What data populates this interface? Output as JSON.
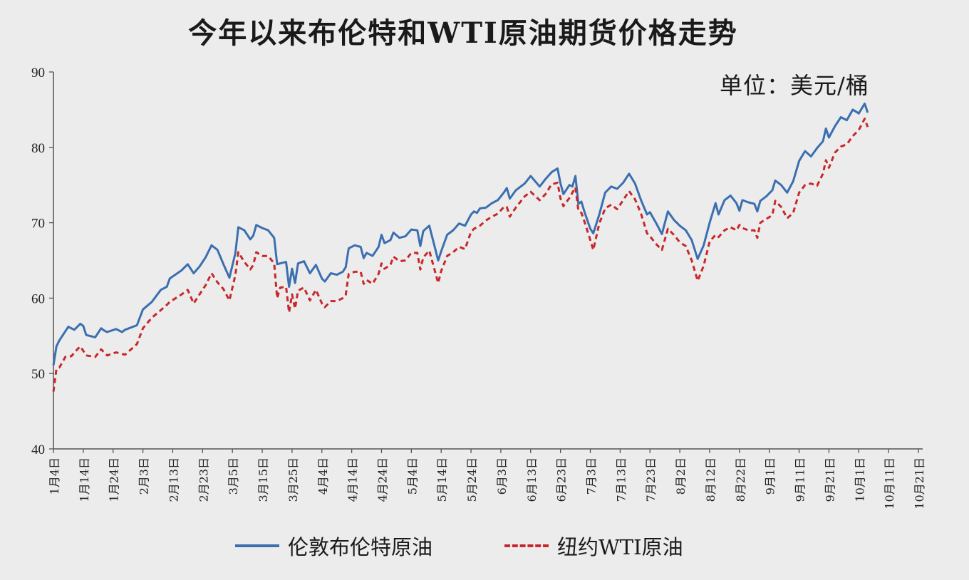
{
  "chart_data": {
    "type": "line",
    "title": "今年以来布伦特和WTI原油期货价格走势",
    "unit_label": "单位：美元/桶",
    "ylim": [
      40,
      90
    ],
    "y_ticks": [
      "40",
      "50",
      "60",
      "70",
      "80",
      "90"
    ],
    "x_tick_labels": [
      "1月4日",
      "1月14日",
      "1月24日",
      "2月3日",
      "2月13日",
      "2月23日",
      "3月5日",
      "3月15日",
      "3月25日",
      "4月4日",
      "4月14日",
      "4月24日",
      "5月4日",
      "5月14日",
      "5月24日",
      "6月3日",
      "6月13日",
      "6月23日",
      "7月3日",
      "7月13日",
      "7月23日",
      "8月2日",
      "8月12日",
      "8月22日",
      "9月1日",
      "9月11日",
      "9月21日",
      "10月1日",
      "10月11日",
      "10月21日"
    ],
    "series": [
      {
        "name": "伦敦布伦特原油",
        "color": "#3b6fb0",
        "style": "solid",
        "values": [
          [
            0,
            51.1
          ],
          [
            1,
            53.6
          ],
          [
            2,
            54.4
          ],
          [
            5,
            56.2
          ],
          [
            7,
            55.8
          ],
          [
            9,
            56.6
          ],
          [
            10,
            56.3
          ],
          [
            11,
            55.1
          ],
          [
            14,
            54.8
          ],
          [
            16,
            56.0
          ],
          [
            17,
            55.7
          ],
          [
            18,
            55.5
          ],
          [
            21,
            55.9
          ],
          [
            23,
            55.5
          ],
          [
            24,
            55.8
          ],
          [
            28,
            56.4
          ],
          [
            30,
            58.5
          ],
          [
            33,
            59.5
          ],
          [
            36,
            61.1
          ],
          [
            38,
            61.5
          ],
          [
            39,
            62.6
          ],
          [
            43,
            63.7
          ],
          [
            45,
            64.5
          ],
          [
            47,
            63.3
          ],
          [
            49,
            64.2
          ],
          [
            51,
            65.4
          ],
          [
            53,
            67.0
          ],
          [
            55,
            66.4
          ],
          [
            57,
            64.5
          ],
          [
            59,
            62.7
          ],
          [
            61,
            66.0
          ],
          [
            62,
            69.4
          ],
          [
            64,
            69.0
          ],
          [
            66,
            67.8
          ],
          [
            67,
            68.3
          ],
          [
            68,
            69.7
          ],
          [
            70,
            69.3
          ],
          [
            72,
            69.0
          ],
          [
            74,
            68.0
          ],
          [
            75,
            64.5
          ],
          [
            76,
            64.6
          ],
          [
            78,
            64.8
          ],
          [
            79,
            61.5
          ],
          [
            80,
            63.9
          ],
          [
            81,
            62.0
          ],
          [
            82,
            64.6
          ],
          [
            84,
            64.9
          ],
          [
            86,
            63.3
          ],
          [
            88,
            64.4
          ],
          [
            90,
            62.6
          ],
          [
            91,
            62.2
          ],
          [
            93,
            63.3
          ],
          [
            95,
            63.1
          ],
          [
            97,
            63.5
          ],
          [
            98,
            64.1
          ],
          [
            99,
            66.6
          ],
          [
            101,
            67.0
          ],
          [
            103,
            66.8
          ],
          [
            104,
            65.3
          ],
          [
            105,
            66.0
          ],
          [
            107,
            65.6
          ],
          [
            109,
            66.8
          ],
          [
            110,
            68.4
          ],
          [
            111,
            67.3
          ],
          [
            113,
            67.7
          ],
          [
            114,
            68.7
          ],
          [
            116,
            68.0
          ],
          [
            118,
            68.2
          ],
          [
            120,
            69.1
          ],
          [
            122,
            69.0
          ],
          [
            123,
            66.9
          ],
          [
            124,
            68.9
          ],
          [
            126,
            69.6
          ],
          [
            129,
            65.0
          ],
          [
            130,
            66.2
          ],
          [
            132,
            68.4
          ],
          [
            134,
            69.0
          ],
          [
            136,
            69.9
          ],
          [
            138,
            69.6
          ],
          [
            140,
            71.1
          ],
          [
            141,
            71.5
          ],
          [
            142,
            71.3
          ],
          [
            143,
            71.9
          ],
          [
            145,
            72.0
          ],
          [
            147,
            72.6
          ],
          [
            149,
            73.0
          ],
          [
            151,
            74.0
          ],
          [
            152,
            74.6
          ],
          [
            153,
            73.2
          ],
          [
            155,
            74.3
          ],
          [
            158,
            75.2
          ],
          [
            160,
            76.2
          ],
          [
            163,
            74.8
          ],
          [
            165,
            75.8
          ],
          [
            167,
            76.7
          ],
          [
            169,
            77.2
          ],
          [
            170,
            75.2
          ],
          [
            171,
            73.8
          ],
          [
            173,
            75.0
          ],
          [
            174,
            74.8
          ],
          [
            175,
            76.2
          ],
          [
            176,
            72.5
          ],
          [
            177,
            72.8
          ],
          [
            178,
            71.5
          ],
          [
            180,
            69.2
          ],
          [
            181,
            68.6
          ],
          [
            183,
            71.1
          ],
          [
            185,
            74.0
          ],
          [
            187,
            74.8
          ],
          [
            189,
            74.5
          ],
          [
            191,
            75.3
          ],
          [
            193,
            76.5
          ],
          [
            195,
            75.2
          ],
          [
            197,
            73.0
          ],
          [
            199,
            71.1
          ],
          [
            200,
            71.4
          ],
          [
            202,
            70.0
          ],
          [
            204,
            68.5
          ],
          [
            206,
            71.5
          ],
          [
            208,
            70.4
          ],
          [
            210,
            69.6
          ],
          [
            212,
            69.0
          ],
          [
            214,
            67.7
          ],
          [
            216,
            65.2
          ],
          [
            218,
            67.0
          ],
          [
            220,
            70.0
          ],
          [
            222,
            72.6
          ],
          [
            223,
            71.1
          ],
          [
            225,
            73.0
          ],
          [
            227,
            73.6
          ],
          [
            229,
            72.6
          ],
          [
            230,
            71.6
          ],
          [
            231,
            73.0
          ],
          [
            233,
            72.7
          ],
          [
            235,
            72.5
          ],
          [
            236,
            71.5
          ],
          [
            237,
            72.9
          ],
          [
            239,
            73.5
          ],
          [
            241,
            74.3
          ],
          [
            242,
            75.6
          ],
          [
            244,
            75.0
          ],
          [
            246,
            74.0
          ],
          [
            248,
            75.5
          ],
          [
            250,
            78.2
          ],
          [
            252,
            79.5
          ],
          [
            254,
            78.8
          ],
          [
            256,
            79.9
          ],
          [
            258,
            80.8
          ],
          [
            259,
            82.5
          ],
          [
            260,
            81.3
          ],
          [
            262,
            82.8
          ],
          [
            264,
            84.0
          ],
          [
            266,
            83.6
          ],
          [
            268,
            85.0
          ],
          [
            270,
            84.5
          ],
          [
            272,
            85.8
          ],
          [
            273,
            84.6
          ]
        ]
      },
      {
        "name": "纽约WTI原油",
        "color": "#c8282a",
        "style": "dashed",
        "values": [
          [
            0,
            47.6
          ],
          [
            1,
            50.6
          ],
          [
            2,
            50.8
          ],
          [
            4,
            52.2
          ],
          [
            6,
            52.3
          ],
          [
            8,
            53.2
          ],
          [
            9,
            53.6
          ],
          [
            11,
            52.4
          ],
          [
            14,
            52.2
          ],
          [
            16,
            53.2
          ],
          [
            17,
            52.8
          ],
          [
            18,
            52.4
          ],
          [
            21,
            52.8
          ],
          [
            23,
            52.6
          ],
          [
            24,
            52.5
          ],
          [
            28,
            53.9
          ],
          [
            30,
            56.0
          ],
          [
            33,
            57.4
          ],
          [
            36,
            58.4
          ],
          [
            38,
            59.1
          ],
          [
            39,
            59.5
          ],
          [
            43,
            60.5
          ],
          [
            45,
            61.1
          ],
          [
            47,
            59.3
          ],
          [
            49,
            60.5
          ],
          [
            51,
            61.7
          ],
          [
            53,
            63.3
          ],
          [
            55,
            62.1
          ],
          [
            57,
            61.2
          ],
          [
            59,
            59.7
          ],
          [
            61,
            63.1
          ],
          [
            62,
            66.1
          ],
          [
            64,
            64.8
          ],
          [
            66,
            63.8
          ],
          [
            67,
            64.4
          ],
          [
            68,
            66.1
          ],
          [
            70,
            65.6
          ],
          [
            72,
            65.6
          ],
          [
            74,
            64.6
          ],
          [
            75,
            60.0
          ],
          [
            76,
            61.4
          ],
          [
            78,
            61.5
          ],
          [
            79,
            58.1
          ],
          [
            80,
            60.5
          ],
          [
            81,
            58.6
          ],
          [
            82,
            61.0
          ],
          [
            84,
            61.4
          ],
          [
            86,
            59.7
          ],
          [
            88,
            61.1
          ],
          [
            90,
            59.3
          ],
          [
            91,
            58.8
          ],
          [
            93,
            59.6
          ],
          [
            95,
            59.6
          ],
          [
            97,
            60.0
          ],
          [
            98,
            60.4
          ],
          [
            99,
            63.2
          ],
          [
            101,
            63.5
          ],
          [
            103,
            63.5
          ],
          [
            104,
            61.9
          ],
          [
            105,
            62.4
          ],
          [
            107,
            61.9
          ],
          [
            109,
            63.2
          ],
          [
            110,
            64.6
          ],
          [
            111,
            63.9
          ],
          [
            113,
            64.4
          ],
          [
            114,
            65.5
          ],
          [
            116,
            64.9
          ],
          [
            118,
            65.0
          ],
          [
            120,
            66.0
          ],
          [
            122,
            66.0
          ],
          [
            123,
            63.8
          ],
          [
            124,
            65.4
          ],
          [
            126,
            66.3
          ],
          [
            129,
            62.0
          ],
          [
            130,
            63.6
          ],
          [
            132,
            65.6
          ],
          [
            134,
            66.1
          ],
          [
            136,
            66.8
          ],
          [
            138,
            66.5
          ],
          [
            140,
            68.8
          ],
          [
            141,
            69.2
          ],
          [
            142,
            69.4
          ],
          [
            143,
            69.6
          ],
          [
            145,
            70.3
          ],
          [
            147,
            70.8
          ],
          [
            149,
            71.2
          ],
          [
            151,
            72.1
          ],
          [
            152,
            72.1
          ],
          [
            153,
            70.8
          ],
          [
            155,
            72.0
          ],
          [
            158,
            73.5
          ],
          [
            160,
            74.1
          ],
          [
            163,
            73.0
          ],
          [
            165,
            73.8
          ],
          [
            167,
            75.1
          ],
          [
            169,
            75.3
          ],
          [
            170,
            73.2
          ],
          [
            171,
            72.2
          ],
          [
            173,
            73.3
          ],
          [
            174,
            74.0
          ],
          [
            175,
            74.7
          ],
          [
            176,
            71.6
          ],
          [
            177,
            71.3
          ],
          [
            178,
            70.2
          ],
          [
            180,
            67.7
          ],
          [
            181,
            66.4
          ],
          [
            183,
            69.9
          ],
          [
            185,
            71.9
          ],
          [
            187,
            72.4
          ],
          [
            189,
            71.8
          ],
          [
            191,
            73.0
          ],
          [
            193,
            74.2
          ],
          [
            195,
            73.1
          ],
          [
            197,
            71.2
          ],
          [
            199,
            68.6
          ],
          [
            200,
            68.2
          ],
          [
            202,
            67.2
          ],
          [
            204,
            66.4
          ],
          [
            206,
            69.2
          ],
          [
            208,
            68.4
          ],
          [
            210,
            67.4
          ],
          [
            212,
            66.9
          ],
          [
            214,
            65.0
          ],
          [
            216,
            62.3
          ],
          [
            218,
            64.3
          ],
          [
            220,
            67.5
          ],
          [
            222,
            68.4
          ],
          [
            223,
            68.1
          ],
          [
            225,
            69.0
          ],
          [
            227,
            69.4
          ],
          [
            229,
            69.0
          ],
          [
            230,
            69.7
          ],
          [
            231,
            69.3
          ],
          [
            233,
            69.0
          ],
          [
            235,
            69.0
          ],
          [
            236,
            68.0
          ],
          [
            237,
            70.0
          ],
          [
            239,
            70.5
          ],
          [
            241,
            71.0
          ],
          [
            242,
            72.9
          ],
          [
            244,
            72.1
          ],
          [
            246,
            70.6
          ],
          [
            248,
            71.3
          ],
          [
            250,
            74.0
          ],
          [
            252,
            75.0
          ],
          [
            254,
            75.2
          ],
          [
            256,
            74.9
          ],
          [
            258,
            76.5
          ],
          [
            259,
            78.3
          ],
          [
            260,
            77.3
          ],
          [
            262,
            79.3
          ],
          [
            264,
            80.1
          ],
          [
            266,
            80.4
          ],
          [
            268,
            81.5
          ],
          [
            270,
            82.3
          ],
          [
            272,
            83.8
          ],
          [
            273,
            82.7
          ]
        ]
      }
    ],
    "grid": false,
    "legend_position": "bottom"
  }
}
